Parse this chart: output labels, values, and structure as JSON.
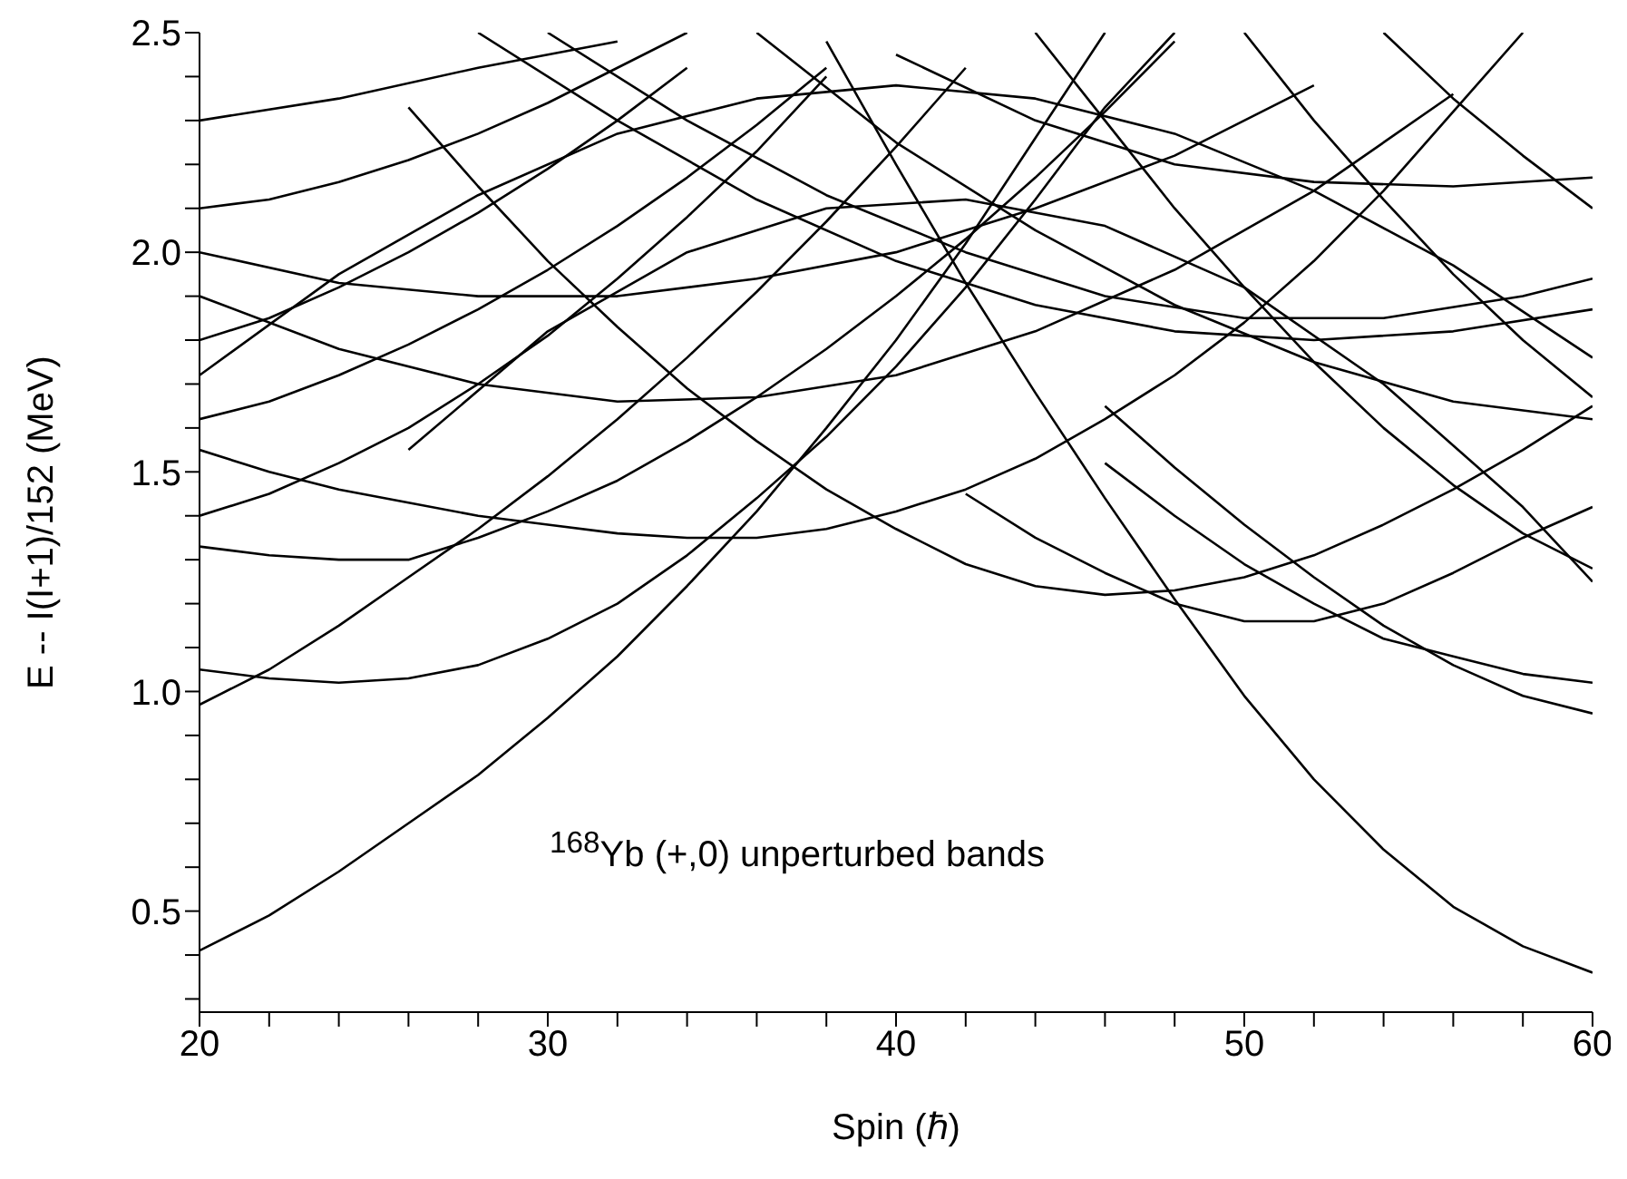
{
  "chart_data": {
    "type": "line",
    "xlabel": "Spin (ℏ)",
    "ylabel": "E -- I(I+1)/152   (MeV)",
    "annotations": [
      "$^{168}$Yb (+,0)  unperturbed bands"
    ],
    "xlim": [
      20,
      60
    ],
    "ylim": [
      0.27,
      2.5
    ],
    "xticks": [
      20,
      {
        "value": 22,
        "label": null
      },
      {
        "value": 24,
        "label": null
      },
      {
        "value": 26,
        "label": null
      },
      {
        "value": 28,
        "label": null
      },
      30,
      {
        "value": 32,
        "label": null
      },
      {
        "value": 34,
        "label": null
      },
      {
        "value": 36,
        "label": null
      },
      {
        "value": 38,
        "label": null
      },
      40,
      {
        "value": 42,
        "label": null
      },
      {
        "value": 44,
        "label": null
      },
      {
        "value": 46,
        "label": null
      },
      {
        "value": 48,
        "label": null
      },
      50,
      {
        "value": 52,
        "label": null
      },
      {
        "value": 54,
        "label": null
      },
      {
        "value": 56,
        "label": null
      },
      {
        "value": 58,
        "label": null
      },
      60
    ],
    "yticks": [
      {
        "value": 0.3,
        "label": null
      },
      {
        "value": 0.4,
        "label": null
      },
      0.5,
      {
        "value": 0.6,
        "label": null
      },
      {
        "value": 0.7,
        "label": null
      },
      {
        "value": 0.8,
        "label": null
      },
      {
        "value": 0.9,
        "label": null
      },
      {
        "value": 1,
        "label": "1.0"
      },
      {
        "value": 1.1,
        "label": null
      },
      {
        "value": 1.2,
        "label": null
      },
      {
        "value": 1.3,
        "label": null
      },
      {
        "value": 1.4,
        "label": null
      },
      1.5,
      {
        "value": 1.6,
        "label": null
      },
      {
        "value": 1.7,
        "label": null
      },
      {
        "value": 1.8,
        "label": null
      },
      {
        "value": 1.9,
        "label": null
      },
      {
        "value": 2,
        "label": "2.0"
      },
      {
        "value": 2.1,
        "label": null
      },
      {
        "value": 2.2,
        "label": null
      },
      {
        "value": 2.3,
        "label": null
      },
      {
        "value": 2.4,
        "label": null
      },
      2.5
    ],
    "legend": false,
    "series": [
      {
        "color": "#000000",
        "x": [
          20,
          22,
          24,
          26,
          28,
          30,
          32,
          34,
          36,
          38,
          40,
          42,
          44,
          46
        ],
        "values": [
          0.41,
          0.49,
          0.59,
          0.7,
          0.81,
          0.94,
          1.08,
          1.24,
          1.41,
          1.6,
          1.8,
          2.02,
          2.26,
          2.5
        ]
      },
      {
        "color": "#000000",
        "x": [
          20,
          22,
          24,
          26,
          28,
          30,
          32,
          34,
          36,
          38,
          40,
          42
        ],
        "values": [
          0.97,
          1.05,
          1.15,
          1.26,
          1.37,
          1.49,
          1.62,
          1.76,
          1.91,
          2.07,
          2.24,
          2.42
        ]
      },
      {
        "color": "#000000",
        "x": [
          20,
          22,
          24,
          26,
          28,
          30,
          32,
          34,
          36,
          38,
          40,
          42,
          44,
          46,
          48
        ],
        "values": [
          1.05,
          1.03,
          1.02,
          1.03,
          1.06,
          1.12,
          1.2,
          1.31,
          1.44,
          1.58,
          1.74,
          1.92,
          2.12,
          2.33,
          2.5
        ]
      },
      {
        "color": "#000000",
        "x": [
          20,
          22,
          24,
          26,
          28,
          30,
          32,
          34,
          36,
          38,
          40,
          42,
          44,
          46,
          48,
          50,
          52,
          54,
          56,
          58
        ],
        "values": [
          1.55,
          1.5,
          1.46,
          1.43,
          1.4,
          1.38,
          1.36,
          1.35,
          1.35,
          1.37,
          1.41,
          1.46,
          1.53,
          1.62,
          1.72,
          1.84,
          1.98,
          2.14,
          2.32,
          2.5
        ]
      },
      {
        "color": "#000000",
        "x": [
          20,
          22,
          24,
          26,
          28,
          30,
          32,
          34,
          36,
          38,
          40,
          42,
          44,
          46,
          48
        ],
        "values": [
          1.33,
          1.31,
          1.3,
          1.3,
          1.35,
          1.41,
          1.48,
          1.57,
          1.67,
          1.78,
          1.9,
          2.03,
          2.17,
          2.32,
          2.48
        ]
      },
      {
        "color": "#000000",
        "x": [
          38,
          40,
          42,
          44,
          46,
          48,
          50,
          52,
          54,
          56,
          58,
          60
        ],
        "values": [
          2.48,
          2.2,
          1.93,
          1.68,
          1.44,
          1.21,
          0.99,
          0.8,
          0.64,
          0.51,
          0.42,
          0.36
        ]
      },
      {
        "color": "#000000",
        "x": [
          26,
          28,
          30,
          32,
          34,
          36,
          38,
          40,
          42,
          44,
          46,
          48,
          50,
          52,
          54,
          56,
          58,
          60
        ],
        "values": [
          2.33,
          2.15,
          1.98,
          1.83,
          1.69,
          1.57,
          1.46,
          1.37,
          1.29,
          1.24,
          1.22,
          1.23,
          1.26,
          1.31,
          1.38,
          1.46,
          1.55,
          1.65
        ]
      },
      {
        "color": "#000000",
        "x": [
          42,
          44,
          46,
          48,
          50,
          52,
          54,
          56,
          58,
          60
        ],
        "values": [
          1.45,
          1.35,
          1.27,
          1.2,
          1.16,
          1.16,
          1.2,
          1.27,
          1.35,
          1.42
        ]
      },
      {
        "color": "#000000",
        "x": [
          46,
          48,
          50,
          52,
          54,
          56,
          58,
          60
        ],
        "values": [
          1.52,
          1.4,
          1.29,
          1.2,
          1.12,
          1.08,
          1.04,
          1.02
        ]
      },
      {
        "color": "#000000",
        "x": [
          46,
          48,
          50,
          52,
          54,
          56,
          58,
          60
        ],
        "values": [
          1.65,
          1.51,
          1.38,
          1.26,
          1.15,
          1.06,
          0.99,
          0.95
        ]
      },
      {
        "color": "#000000",
        "x": [
          20,
          22,
          24,
          26,
          28,
          30,
          32,
          34
        ],
        "values": [
          1.8,
          1.85,
          1.92,
          2.0,
          2.09,
          2.19,
          2.3,
          2.42
        ]
      },
      {
        "color": "#000000",
        "x": [
          20,
          22,
          24,
          26,
          28,
          30,
          32,
          34,
          36,
          38
        ],
        "values": [
          1.62,
          1.66,
          1.72,
          1.79,
          1.87,
          1.96,
          2.06,
          2.17,
          2.29,
          2.42
        ]
      },
      {
        "color": "#000000",
        "x": [
          20,
          22,
          24,
          26,
          28,
          30,
          32,
          34
        ],
        "values": [
          2.1,
          2.12,
          2.16,
          2.21,
          2.27,
          2.34,
          2.42,
          2.5
        ]
      },
      {
        "color": "#000000",
        "x": [
          20,
          24,
          28,
          32,
          36,
          40,
          44,
          48,
          52,
          56,
          60
        ],
        "values": [
          1.72,
          1.95,
          2.13,
          2.27,
          2.35,
          2.38,
          2.35,
          2.27,
          2.14,
          1.97,
          1.76
        ]
      },
      {
        "color": "#000000",
        "x": [
          26,
          30,
          34,
          38,
          42,
          46,
          50,
          54,
          58,
          60
        ],
        "values": [
          1.55,
          1.82,
          2.0,
          2.1,
          2.12,
          2.06,
          1.92,
          1.7,
          1.42,
          1.25
        ]
      },
      {
        "color": "#000000",
        "x": [
          44,
          46,
          48,
          50,
          52,
          54,
          56,
          58,
          60
        ],
        "values": [
          2.5,
          2.3,
          2.1,
          1.92,
          1.75,
          1.6,
          1.47,
          1.36,
          1.28
        ]
      },
      {
        "color": "#000000",
        "x": [
          50,
          52,
          54,
          56,
          58,
          60
        ],
        "values": [
          2.5,
          2.3,
          2.12,
          1.95,
          1.8,
          1.67
        ]
      },
      {
        "color": "#000000",
        "x": [
          40,
          44,
          48,
          52,
          56,
          60
        ],
        "values": [
          2.45,
          2.3,
          2.2,
          2.16,
          2.15,
          2.17
        ]
      },
      {
        "color": "#000000",
        "x": [
          20,
          24,
          28,
          32
        ],
        "values": [
          2.3,
          2.35,
          2.42,
          2.48
        ]
      },
      {
        "color": "#000000",
        "x": [
          20,
          24,
          28,
          32,
          36,
          40,
          44,
          48,
          52,
          56
        ],
        "values": [
          1.9,
          1.78,
          1.7,
          1.66,
          1.67,
          1.72,
          1.82,
          1.96,
          2.14,
          2.36
        ]
      },
      {
        "color": "#000000",
        "x": [
          30,
          34,
          38,
          42,
          46,
          50,
          54,
          58,
          60
        ],
        "values": [
          2.5,
          2.3,
          2.13,
          2.0,
          1.9,
          1.85,
          1.85,
          1.9,
          1.94
        ]
      },
      {
        "color": "#000000",
        "x": [
          36,
          40,
          44,
          48,
          52,
          56,
          60
        ],
        "values": [
          2.5,
          2.25,
          2.05,
          1.88,
          1.75,
          1.66,
          1.62
        ]
      },
      {
        "color": "#000000",
        "x": [
          20,
          22,
          24,
          26,
          28,
          30,
          32,
          34,
          36,
          38
        ],
        "values": [
          1.4,
          1.45,
          1.52,
          1.6,
          1.7,
          1.81,
          1.94,
          2.08,
          2.23,
          2.4
        ]
      },
      {
        "color": "#000000",
        "x": [
          54,
          56,
          58,
          60
        ],
        "values": [
          2.5,
          2.35,
          2.22,
          2.1
        ]
      },
      {
        "color": "#000000",
        "x": [
          20,
          24,
          28,
          32,
          36,
          40,
          44,
          48,
          52
        ],
        "values": [
          2.0,
          1.93,
          1.9,
          1.9,
          1.94,
          2.0,
          2.1,
          2.22,
          2.38
        ]
      },
      {
        "color": "#000000",
        "x": [
          28,
          32,
          36,
          40,
          44,
          48,
          52,
          56,
          60
        ],
        "values": [
          2.5,
          2.3,
          2.12,
          1.98,
          1.88,
          1.82,
          1.8,
          1.82,
          1.87
        ]
      }
    ]
  }
}
